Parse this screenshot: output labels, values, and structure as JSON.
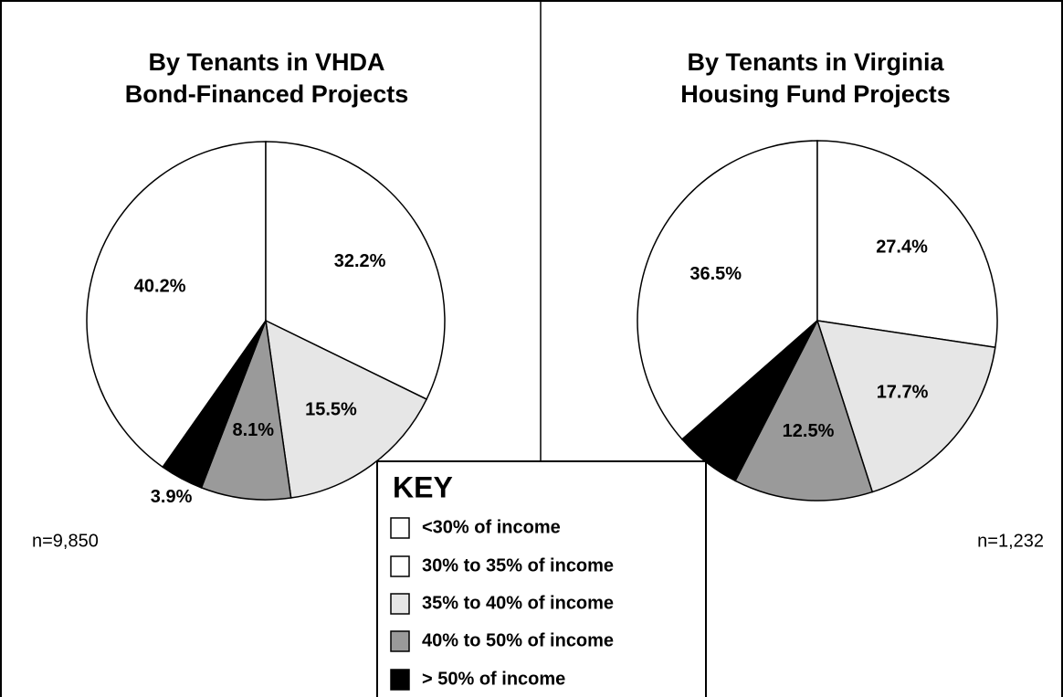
{
  "chart_data": [
    {
      "type": "pie",
      "title": [
        "By Tenants in VHDA",
        "Bond-Financed Projects"
      ],
      "note": "n=9,850",
      "legend_title": "KEY",
      "categories": [
        "<30% of income",
        "30% to 35% of income",
        "35% to 40% of income",
        "40% to 50% of income",
        "> 50% of income"
      ],
      "colors": [
        "#ffffff",
        "#ffffff",
        "#e6e6e6",
        "#9a9a9a",
        "#000000"
      ],
      "values": [
        40.2,
        32.2,
        15.5,
        8.1,
        3.9
      ],
      "value_labels": [
        "40.2%",
        "32.2%",
        "15.5%",
        "8.1%",
        "3.9%"
      ]
    },
    {
      "type": "pie",
      "title": [
        "By Tenants in Virginia",
        "Housing Fund Projects"
      ],
      "note": "n=1,232",
      "categories": [
        "<30% of income",
        "30% to 35% of income",
        "35% to 40% of income",
        "40% to 50% of income",
        "> 50% of income"
      ],
      "colors": [
        "#ffffff",
        "#ffffff",
        "#e6e6e6",
        "#9a9a9a",
        "#000000"
      ],
      "values": [
        36.5,
        27.4,
        17.7,
        12.5,
        6.0
      ],
      "value_labels": [
        "36.5%",
        "27.4%",
        "17.7%",
        "12.5%",
        "6.0%"
      ]
    }
  ]
}
